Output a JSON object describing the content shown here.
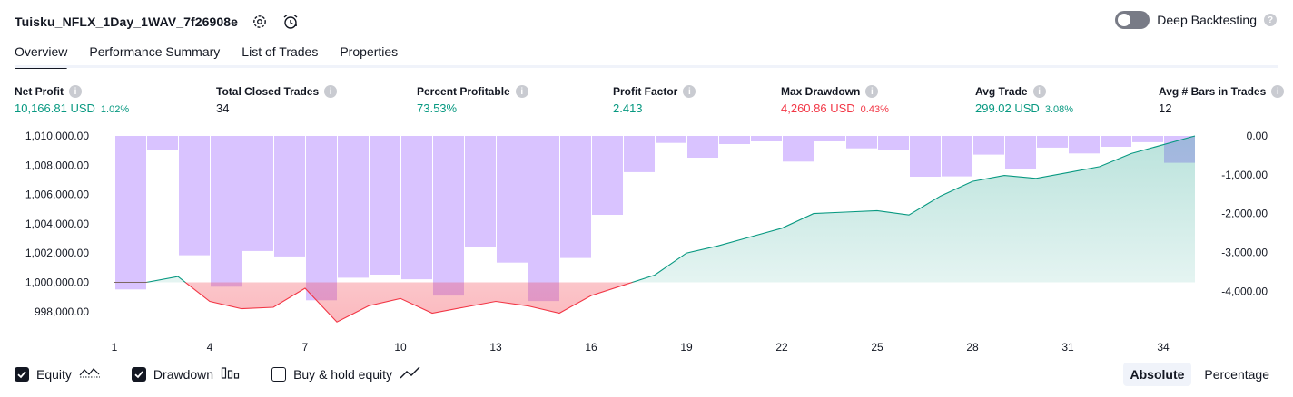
{
  "header": {
    "strategy_name": "Tuisku_NFLX_1Day_1WAV_7f26908e",
    "deep_backtesting_label": "Deep Backtesting"
  },
  "tabs": [
    {
      "label": "Overview",
      "active": true
    },
    {
      "label": "Performance Summary",
      "active": false
    },
    {
      "label": "List of Trades",
      "active": false
    },
    {
      "label": "Properties",
      "active": false
    }
  ],
  "metrics": [
    {
      "label": "Net Profit",
      "value": "10,166.81 USD",
      "sub": "1.02%",
      "color": "green"
    },
    {
      "label": "Total Closed Trades",
      "value": "34",
      "sub": "",
      "color": "dark"
    },
    {
      "label": "Percent Profitable",
      "value": "73.53%",
      "sub": "",
      "color": "green"
    },
    {
      "label": "Profit Factor",
      "value": "2.413",
      "sub": "",
      "color": "green"
    },
    {
      "label": "Max Drawdown",
      "value": "4,260.86 USD",
      "sub": "0.43%",
      "color": "red"
    },
    {
      "label": "Avg Trade",
      "value": "299.02 USD",
      "sub": "3.08%",
      "color": "green"
    },
    {
      "label": "Avg # Bars in Trades",
      "value": "12",
      "sub": "",
      "color": "dark"
    }
  ],
  "legend": {
    "equity_label": "Equity",
    "drawdown_label": "Drawdown",
    "buy_hold_label": "Buy & hold equity",
    "equity_checked": true,
    "drawdown_checked": true,
    "buy_hold_checked": false
  },
  "mode_toggle": {
    "absolute_label": "Absolute",
    "percentage_label": "Percentage",
    "active": "Absolute"
  },
  "colors": {
    "equity_line": "#089981",
    "equity_fill": "#089981",
    "drawdown_line_negative": "#f23645",
    "drawdown_bar": "#b388ff",
    "red_text": "#f23645",
    "green_text": "#089981"
  },
  "chart_data": {
    "type": "line",
    "title": "",
    "x_ticks": [
      1,
      4,
      7,
      10,
      13,
      16,
      19,
      22,
      25,
      28,
      31,
      34
    ],
    "equity": {
      "x": [
        1,
        2,
        3,
        4,
        5,
        6,
        7,
        8,
        9,
        10,
        11,
        12,
        13,
        14,
        15,
        16,
        17,
        18,
        19,
        20,
        21,
        22,
        23,
        24,
        25,
        26,
        27,
        28,
        29,
        30,
        31,
        32,
        33,
        34,
        35
      ],
      "values": [
        1000000,
        1000000,
        1000400,
        998700,
        998200,
        998300,
        999600,
        997300,
        998400,
        998900,
        997900,
        998300,
        998700,
        998400,
        997900,
        999100,
        999800,
        1000500,
        1002000,
        1002500,
        1003100,
        1003700,
        1004700,
        1004800,
        1004900,
        1004600,
        1005900,
        1006900,
        1007300,
        1007100,
        1007500,
        1007900,
        1008800,
        1009400,
        1010000
      ],
      "baseline": 1000000
    },
    "drawdown": {
      "x": [
        2,
        3,
        4,
        5,
        6,
        7,
        8,
        9,
        10,
        11,
        12,
        13,
        14,
        15,
        16,
        17,
        18,
        19,
        20,
        21,
        22,
        23,
        24,
        25,
        26,
        27,
        28,
        29,
        30,
        31,
        32,
        33,
        34,
        35
      ],
      "values": [
        -3950,
        -370,
        -3070,
        -3880,
        -2960,
        -3100,
        -4230,
        -3650,
        -3570,
        -3690,
        -4110,
        -2850,
        -3260,
        -4250,
        -3140,
        -2030,
        -930,
        -180,
        -560,
        -210,
        -140,
        -660,
        -140,
        -320,
        -360,
        -1050,
        -1040,
        -480,
        -860,
        -300,
        -450,
        -280,
        -160,
        -690
      ]
    },
    "left_axis": {
      "range": [
        997000,
        1010000
      ],
      "ticks": [
        1010000,
        1008000,
        1006000,
        1004000,
        1002000,
        1000000,
        998000
      ],
      "tick_labels": [
        "1,010,000.00",
        "1,008,000.00",
        "1,006,000.00",
        "1,004,000.00",
        "1,002,000.00",
        "1,000,000.00",
        "998,000.00"
      ]
    },
    "right_axis": {
      "range": [
        -4900,
        0
      ],
      "ticks": [
        0,
        -1000,
        -2000,
        -3000,
        -4000
      ],
      "tick_labels": [
        "0.00",
        "-1,000.00",
        "-2,000.00",
        "-3,000.00",
        "-4,000.00"
      ]
    },
    "grid": false,
    "legend_position": "bottom-left"
  }
}
